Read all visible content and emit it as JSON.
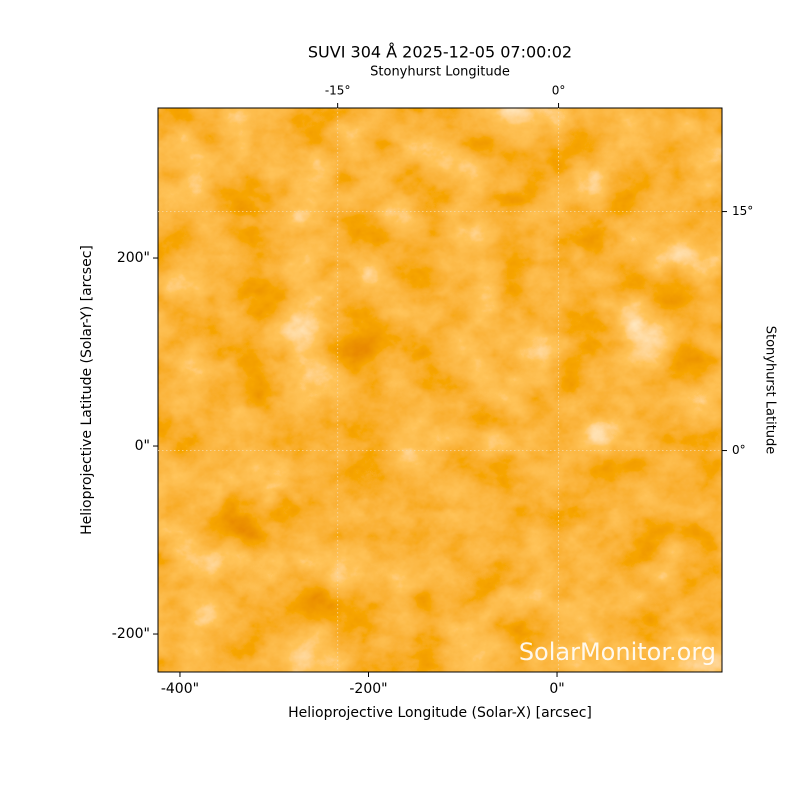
{
  "chart_data": {
    "type": "image",
    "title": "SUVI 304 Å 2025-12-05 07:00:02",
    "xlabel": "Helioprojective Longitude (Solar-X) [arcsec]",
    "ylabel": "Helioprojective Latitude (Solar-Y) [arcsec]",
    "x2label": "Stonyhurst Longitude",
    "y2label": "Stonyhurst Latitude",
    "annotation": "SolarMonitor.org",
    "xlim": [
      -423.3,
      175
    ],
    "ylim": [
      -240.4,
      359.6
    ],
    "xticks": [
      {
        "value": -400,
        "label": "-400\""
      },
      {
        "value": -200,
        "label": "-200\""
      },
      {
        "value": 0,
        "label": "0\""
      }
    ],
    "yticks": [
      {
        "value": -200,
        "label": "-200\""
      },
      {
        "value": 0,
        "label": "0\""
      },
      {
        "value": 200,
        "label": "200\""
      }
    ],
    "x2lim": [
      -27.2,
      11.1
    ],
    "x2ticks": [
      {
        "value": -15,
        "label": "-15°"
      },
      {
        "value": 0,
        "label": "0°"
      }
    ],
    "y2lim": [
      -13.9,
      21.5
    ],
    "y2ticks": [
      {
        "value": 0,
        "label": "0°"
      },
      {
        "value": 15,
        "label": "15°"
      }
    ],
    "grid": true
  }
}
